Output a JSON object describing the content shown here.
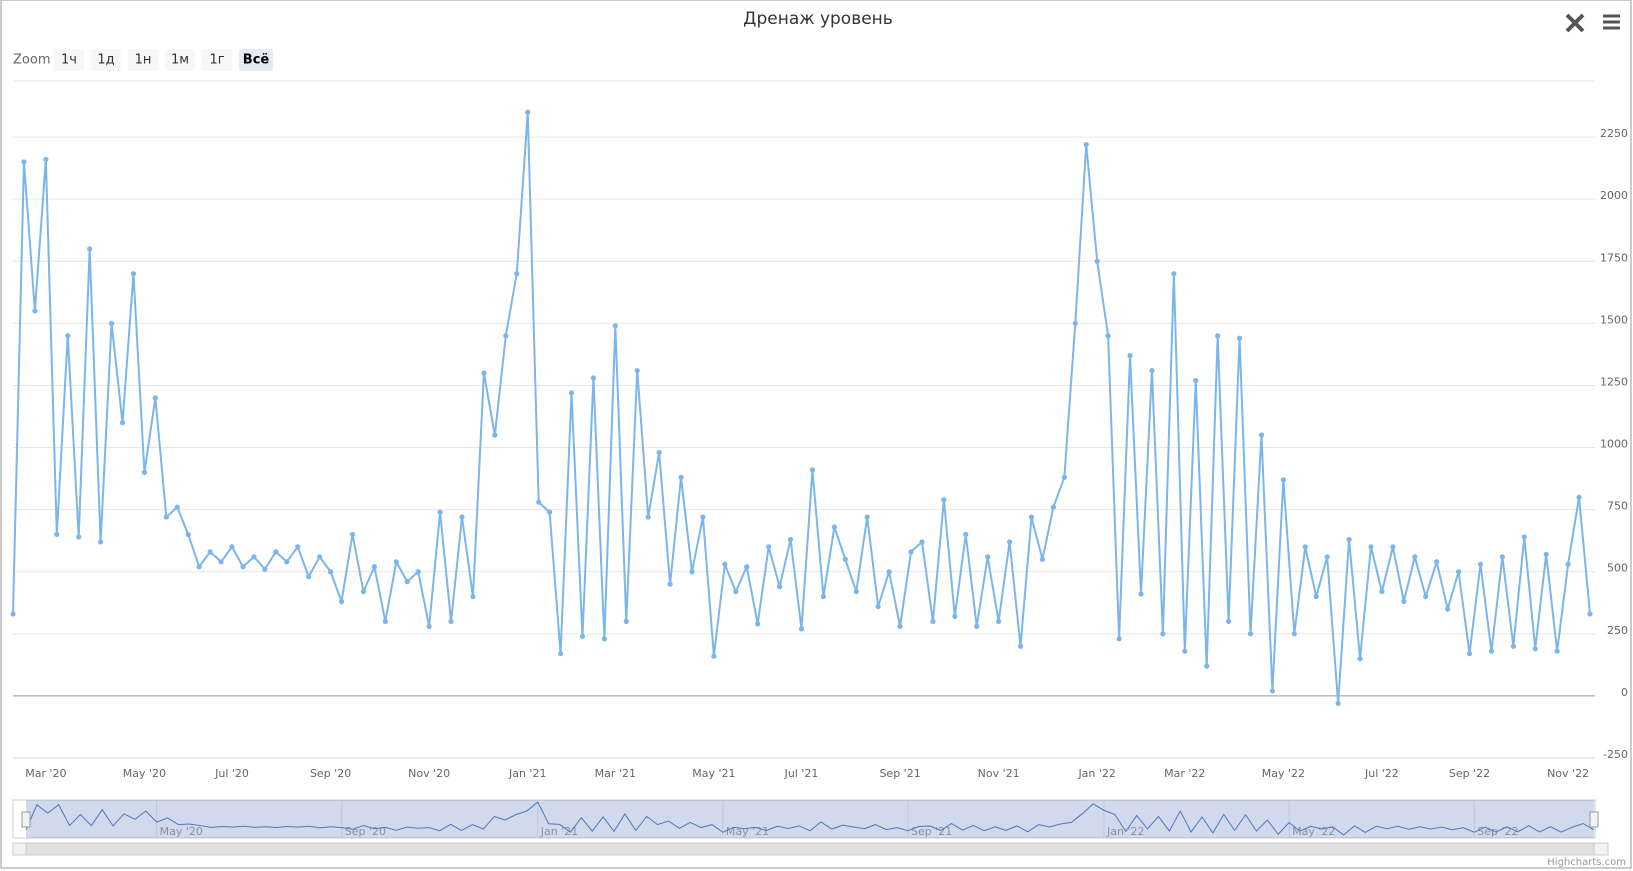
{
  "chart_data": {
    "type": "line",
    "title": "Дренаж уровень",
    "zoom_label": "Zoom",
    "zoom_buttons": [
      "1ч",
      "1д",
      "1н",
      "1м",
      "1г",
      "Всё"
    ],
    "selected_zoom": 5,
    "credits": "Highcharts.com",
    "color": "#7cb5ec",
    "navigator_color": "#4a6fb5",
    "categories": [
      null,
      null,
      null,
      "Mar '20",
      null,
      null,
      null,
      null,
      null,
      null,
      null,
      null,
      "May '20",
      null,
      null,
      null,
      null,
      null,
      null,
      null,
      "Jul '20",
      null,
      null,
      null,
      null,
      null,
      null,
      null,
      null,
      "Sep '20",
      null,
      null,
      null,
      null,
      null,
      null,
      null,
      null,
      "Nov '20",
      null,
      null,
      null,
      null,
      null,
      null,
      null,
      null,
      "Jan '21",
      null,
      null,
      null,
      null,
      null,
      null,
      null,
      "Mar '21",
      null,
      null,
      null,
      null,
      null,
      null,
      null,
      null,
      "May '21",
      null,
      null,
      null,
      null,
      null,
      null,
      null,
      "Jul '21",
      null,
      null,
      null,
      null,
      null,
      null,
      null,
      null,
      "Sep '21",
      null,
      null,
      null,
      null,
      null,
      null,
      null,
      null,
      "Nov '21",
      null,
      null,
      null,
      null,
      null,
      null,
      null,
      null,
      "Jan '22",
      null,
      null,
      null,
      null,
      null,
      null,
      null,
      "Mar '22",
      null,
      null,
      null,
      null,
      null,
      null,
      null,
      null,
      "May '22",
      null,
      null,
      null,
      null,
      null,
      null,
      null,
      null,
      "Jul '22",
      null,
      null,
      null,
      null,
      null,
      null,
      null,
      "Sep '22",
      null,
      null,
      null,
      null,
      null,
      null,
      null,
      null,
      "Nov '22",
      null,
      null
    ],
    "values": [
      330,
      2150,
      1550,
      2160,
      650,
      1450,
      640,
      1800,
      620,
      1500,
      1100,
      1700,
      900,
      1200,
      720,
      760,
      650,
      520,
      580,
      540,
      600,
      520,
      560,
      510,
      580,
      540,
      600,
      480,
      560,
      500,
      380,
      650,
      420,
      520,
      300,
      540,
      460,
      500,
      280,
      740,
      300,
      720,
      400,
      1300,
      1050,
      1450,
      1700,
      2350,
      780,
      740,
      170,
      1220,
      240,
      1280,
      230,
      1490,
      300,
      1310,
      720,
      980,
      450,
      880,
      500,
      720,
      160,
      530,
      420,
      520,
      290,
      600,
      440,
      630,
      270,
      910,
      400,
      680,
      550,
      420,
      720,
      360,
      500,
      280,
      580,
      620,
      300,
      790,
      320,
      650,
      280,
      560,
      300,
      620,
      200,
      720,
      550,
      760,
      880,
      1500,
      2220,
      1750,
      1450,
      230,
      1370,
      410,
      1310,
      250,
      1700,
      180,
      1270,
      120,
      1450,
      300,
      1440,
      250,
      1050,
      20,
      870,
      250,
      600,
      400,
      560,
      -30,
      630,
      150,
      600,
      420,
      600,
      380,
      560,
      400,
      540,
      350,
      500,
      170,
      530,
      180,
      560,
      200,
      640,
      190,
      570,
      180,
      530,
      800,
      330
    ],
    "navigator_labels": [
      "May '20",
      "Sep '20",
      "Jan '21",
      "May '21",
      "Sep '21",
      "Jan '22",
      "May '22",
      "Sep '22"
    ],
    "ylim": [
      -250,
      2500
    ],
    "yticks": [
      -250,
      0,
      250,
      500,
      750,
      1000,
      1250,
      1500,
      1750,
      2000,
      2250
    ],
    "grid": true
  }
}
